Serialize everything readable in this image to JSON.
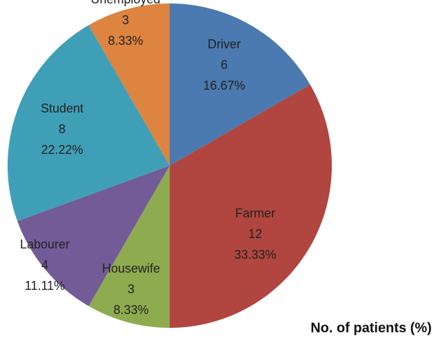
{
  "chart_data": {
    "type": "pie",
    "title": "No. of patients (%)",
    "categories": [
      "Driver",
      "Farmer",
      "Housewife",
      "Labourer",
      "Student",
      "Unemployed"
    ],
    "values": [
      6,
      12,
      3,
      4,
      8,
      3
    ],
    "percent_labels": [
      "16.67%",
      "33.33%",
      "8.33%",
      "11.11%",
      "22.22%",
      "8.33%"
    ],
    "colors": [
      "#4a7ab0",
      "#b0463f",
      "#8fab4f",
      "#735b97",
      "#3f9fb7",
      "#dd8440"
    ]
  }
}
